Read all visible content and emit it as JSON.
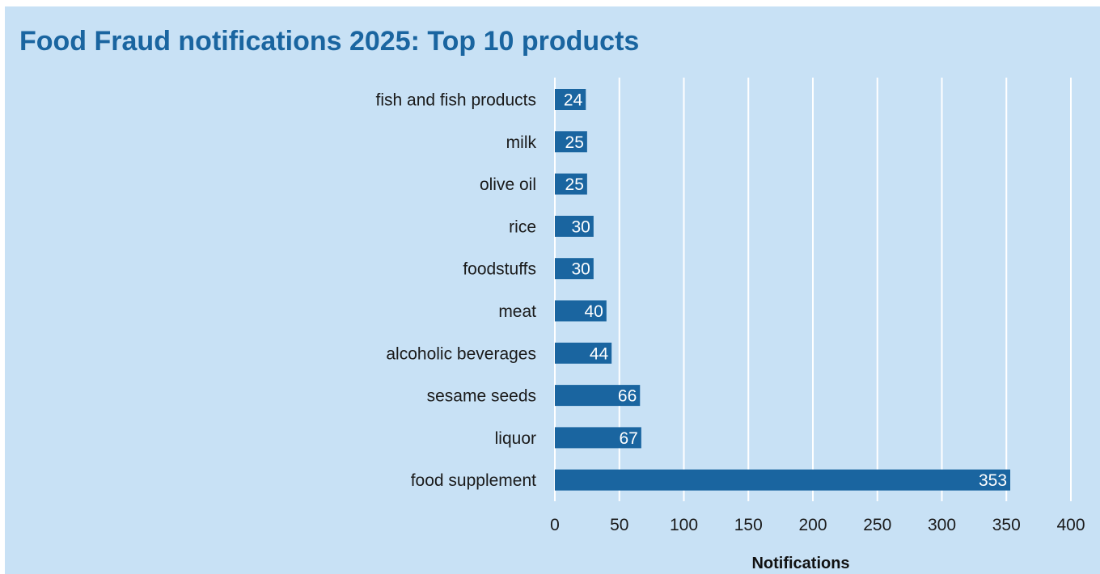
{
  "chart_data": {
    "type": "bar",
    "orientation": "horizontal",
    "title": "Food Fraud notifications 2025: Top 10 products",
    "xlabel": "Notifications",
    "ylabel": "",
    "categories": [
      "fish and fish products",
      "milk",
      "olive oil",
      "rice",
      "foodstuffs",
      "meat",
      "alcoholic beverages",
      "sesame seeds",
      "liquor",
      "food supplement"
    ],
    "values": [
      24,
      25,
      25,
      30,
      30,
      40,
      44,
      66,
      67,
      353
    ],
    "xlim": [
      0,
      400
    ],
    "xticks": [
      0,
      50,
      100,
      150,
      200,
      250,
      300,
      350,
      400
    ],
    "grid": "vertical",
    "legend": "none",
    "colors": {
      "bar": "#1a65a0",
      "background": "#c8e1f5",
      "title": "#1a65a0",
      "grid": "#ffffff",
      "label_text": "#ffffff"
    }
  }
}
